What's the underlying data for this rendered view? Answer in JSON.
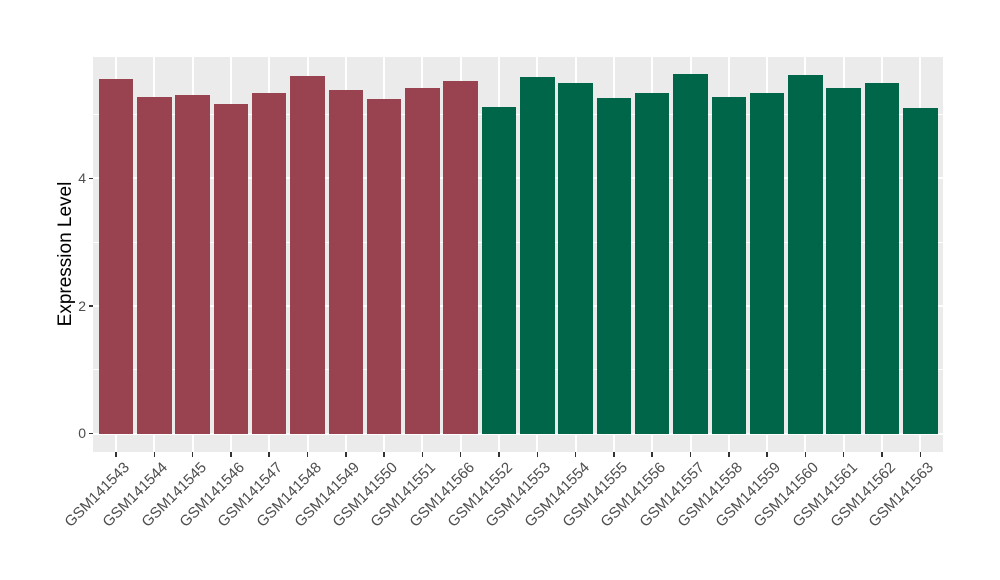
{
  "figure": {
    "background_color": "#FFFFFF",
    "panel_background_color": "#EBEBEB",
    "gridline_color": "#FFFFFF",
    "tick_mark_color": "#333333",
    "axis_text_color": "#4D4D4D",
    "axis_title_color": "#000000"
  },
  "chart_data": {
    "type": "bar",
    "title": "",
    "xlabel": "",
    "ylabel": "Expression Level",
    "ylim": [
      0,
      5.9
    ],
    "yticks_major": [
      0,
      2,
      4
    ],
    "yticks_minor": [
      1,
      3,
      5
    ],
    "grid": "major and minor horizontal white gridlines, vertical white gridline at each bar center",
    "legend_position": "none",
    "categories": [
      "GSM141543",
      "GSM141544",
      "GSM141545",
      "GSM141546",
      "GSM141547",
      "GSM141548",
      "GSM141549",
      "GSM141550",
      "GSM141551",
      "GSM141566",
      "GSM141552",
      "GSM141553",
      "GSM141554",
      "GSM141555",
      "GSM141556",
      "GSM141557",
      "GSM141558",
      "GSM141559",
      "GSM141560",
      "GSM141561",
      "GSM141562",
      "GSM141563"
    ],
    "values": [
      5.55,
      5.27,
      5.31,
      5.16,
      5.34,
      5.6,
      5.39,
      5.24,
      5.41,
      5.53,
      5.12,
      5.59,
      5.49,
      5.26,
      5.34,
      5.63,
      5.27,
      5.33,
      5.62,
      5.41,
      5.5,
      5.1
    ],
    "groups": [
      "red",
      "red",
      "red",
      "red",
      "red",
      "red",
      "red",
      "red",
      "red",
      "red",
      "green",
      "green",
      "green",
      "green",
      "green",
      "green",
      "green",
      "green",
      "green",
      "green",
      "green",
      "green"
    ],
    "group_colors": {
      "red": "#9A4350",
      "green": "#006649"
    }
  }
}
